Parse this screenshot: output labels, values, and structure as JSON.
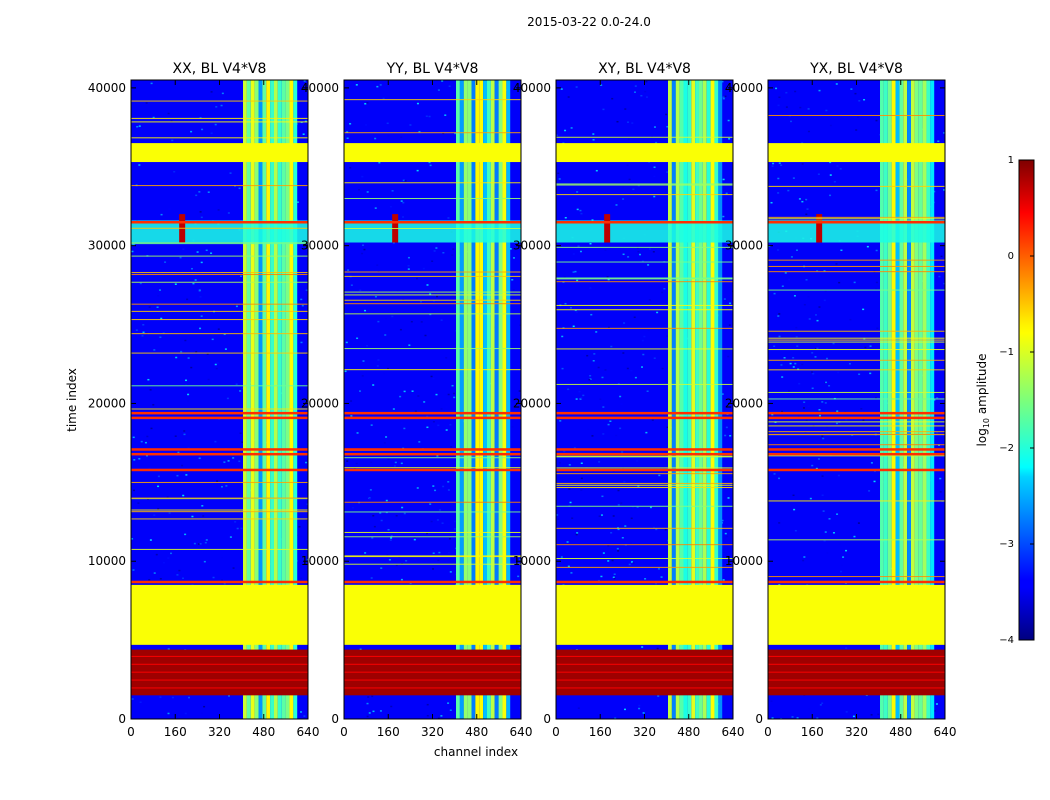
{
  "chart_data": {
    "type": "heatmap",
    "suptitle": "2015-03-22 0.0-24.0",
    "xlabel": "channel index",
    "ylabel": "time index",
    "xlim": [
      0,
      640
    ],
    "ylim": [
      0,
      40500
    ],
    "xticks": [
      0,
      160,
      320,
      480,
      640
    ],
    "yticks": [
      0,
      10000,
      20000,
      30000,
      40000
    ],
    "panels": [
      {
        "title": "XX, BL V4*V8"
      },
      {
        "title": "YY, BL V4*V8"
      },
      {
        "title": "XY, BL V4*V8"
      },
      {
        "title": "YX, BL V4*V8"
      }
    ],
    "colorbar": {
      "label_prefix": "log",
      "label_sub": "10",
      "label_suffix": " amplitude",
      "range": [
        -4,
        1
      ],
      "ticks": [
        1,
        0,
        -1,
        -2,
        -3,
        -4
      ],
      "tick_labels": [
        "1",
        "0",
        "−1",
        "−2",
        "−3",
        "−4"
      ],
      "colormap": "jet"
    },
    "features": {
      "background_level": -3.4,
      "rfi_channel_band": [
        405,
        590
      ],
      "rfi_band_level": -1.3,
      "dropout_blocks": [
        {
          "t0": 4700,
          "t1": 8500,
          "level": -0.9
        },
        {
          "t0": 1500,
          "t1": 4400,
          "level": 0.85
        },
        {
          "t0": 35300,
          "t1": 36500,
          "level": -0.9
        }
      ],
      "bright_rows": [
        8700,
        15800,
        16800,
        17100,
        19100,
        19400,
        31500
      ],
      "rfi_burst": {
        "t0": 30200,
        "t1": 31600,
        "level": -2.0
      },
      "rfi_burst_peak_channel": 185
    }
  }
}
